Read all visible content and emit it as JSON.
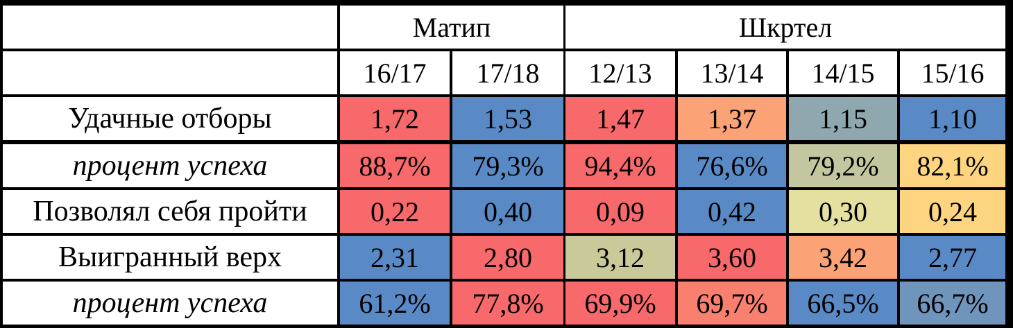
{
  "chart_data": {
    "type": "table",
    "groups": [
      {
        "name": "Матип",
        "seasons": [
          "16/17",
          "17/18"
        ]
      },
      {
        "name": "Шкртел",
        "seasons": [
          "12/13",
          "13/14",
          "14/15",
          "15/16"
        ]
      }
    ],
    "columns": [
      "16/17",
      "17/18",
      "12/13",
      "13/14",
      "14/15",
      "15/16"
    ],
    "rows": [
      {
        "label": "Удачные отборы",
        "italic": false,
        "values": [
          "1,72",
          "1,53",
          "1,47",
          "1,37",
          "1,15",
          "1,10"
        ],
        "colors": [
          "#F8696B",
          "#5A8AC6",
          "#F8696B",
          "#FBA276",
          "#8FA7AE",
          "#5A8AC6"
        ]
      },
      {
        "label": "процент успеха",
        "italic": true,
        "values": [
          "88,7%",
          "79,3%",
          "94,4%",
          "76,6%",
          "79,2%",
          "82,1%"
        ],
        "colors": [
          "#F8696B",
          "#5A8AC6",
          "#F8696B",
          "#5A8AC6",
          "#C4C6A0",
          "#FDD580"
        ]
      },
      {
        "label": "Позволял себя пройти",
        "italic": false,
        "values": [
          "0,22",
          "0,40",
          "0,09",
          "0,42",
          "0,30",
          "0,24"
        ],
        "colors": [
          "#F8696B",
          "#5A8AC6",
          "#F8696B",
          "#5A8AC6",
          "#E6E0A0",
          "#FDD580"
        ]
      },
      {
        "label": "Выигранный верх",
        "italic": false,
        "values": [
          "2,31",
          "2,80",
          "3,12",
          "3,60",
          "3,42",
          "2,77"
        ],
        "colors": [
          "#5A8AC6",
          "#F8696B",
          "#C9C99A",
          "#F8696B",
          "#FBA276",
          "#5A8AC6"
        ]
      },
      {
        "label": "процент успеха",
        "italic": true,
        "values": [
          "61,2%",
          "77,8%",
          "69,9%",
          "69,7%",
          "66,5%",
          "66,7%"
        ],
        "colors": [
          "#5A8AC6",
          "#F8696B",
          "#F8696B",
          "#F97F6E",
          "#5A8AC6",
          "#6F95BC"
        ]
      }
    ]
  }
}
